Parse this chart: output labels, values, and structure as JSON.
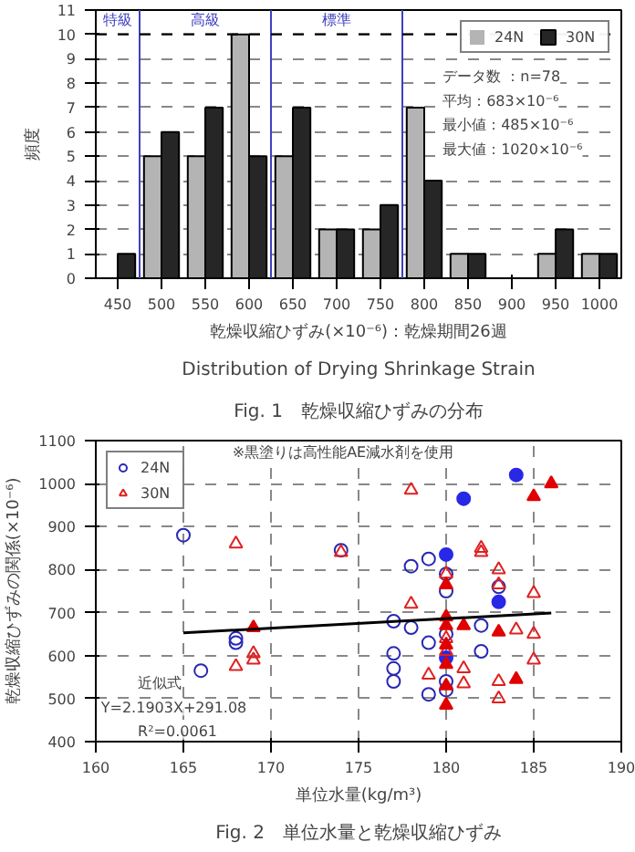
{
  "chart_data": [
    {
      "type": "bar",
      "title": "Fig. 1　乾燥収縮ひずみの分布",
      "subtitle": "Distribution of Drying Shrinkage Strain",
      "xlabel": "乾燥収縮ひずみ(×10⁻⁶)：乾燥期間26週",
      "ylabel": "頻度",
      "x": [
        450,
        500,
        550,
        600,
        650,
        700,
        750,
        800,
        850,
        900,
        950,
        1000
      ],
      "series": [
        {
          "name": "24N",
          "color": "#b4b4b4",
          "values": [
            0,
            5,
            5,
            10,
            5,
            2,
            2,
            7,
            1,
            0,
            1,
            1
          ]
        },
        {
          "name": "30N",
          "color": "#262626",
          "values": [
            1,
            6,
            7,
            5,
            7,
            2,
            3,
            4,
            1,
            0,
            2,
            1
          ]
        }
      ],
      "xlim": [
        425,
        1025
      ],
      "xticks": [
        450,
        500,
        550,
        600,
        650,
        700,
        750,
        800,
        850,
        900,
        950,
        1000
      ],
      "ylim": [
        0,
        11
      ],
      "yticks": [
        0,
        1,
        2,
        3,
        4,
        5,
        6,
        7,
        8,
        9,
        10,
        11
      ],
      "ref_lines": [
        {
          "axis": "x",
          "value": 475,
          "label": "特級",
          "color": "#4040c0"
        },
        {
          "axis": "x",
          "value": 625,
          "label": "高級",
          "color": "#4040c0"
        },
        {
          "axis": "x",
          "value": 775,
          "label": "標準",
          "color": "#4040c0"
        },
        {
          "axis": "y",
          "value": 10,
          "color": "#000000",
          "line_style": "dashed"
        }
      ],
      "annotations": [
        "データ数 ：n=78",
        "平均：683×10⁻⁶",
        "最小値：485×10⁻⁶",
        "最大値：1020×10⁻⁶"
      ],
      "grid": "y",
      "legend": "top right"
    },
    {
      "type": "scatter",
      "title": "Fig. 2　単位水量と乾燥収縮ひずみ",
      "xlabel": "単位水量(kg/m³)",
      "ylabel": "乾燥収縮ひずみの関係(×10⁻⁶)",
      "series": [
        {
          "name": "24N",
          "color": "#2828b4",
          "marker": "circle",
          "x": [
            165,
            166,
            168,
            168,
            174,
            177,
            177,
            177,
            177,
            178,
            178,
            179,
            179,
            179,
            180,
            180,
            180,
            180,
            180,
            182,
            182,
            183
          ],
          "values": [
            880,
            565,
            640,
            630,
            845,
            680,
            605,
            570,
            540,
            808,
            665,
            825,
            630,
            510,
            790,
            750,
            650,
            540,
            520,
            670,
            610,
            760
          ]
        },
        {
          "color": "#2828e6",
          "marker": "circle",
          "x": [
            180,
            180,
            181,
            183,
            184
          ],
          "values": [
            835,
            595,
            965,
            725,
            1020
          ]
        },
        {
          "name": "30N",
          "color": "#e02020",
          "marker": "triangle",
          "x": [
            168,
            168,
            169,
            169,
            174,
            178,
            178,
            179,
            180,
            180,
            180,
            181,
            181,
            182,
            182,
            183,
            183,
            183,
            183,
            184,
            185,
            185,
            185
          ],
          "values": [
            860,
            575,
            605,
            590,
            840,
            985,
            720,
            555,
            790,
            640,
            610,
            570,
            535,
            850,
            840,
            800,
            765,
            540,
            500,
            660,
            745,
            650,
            590
          ]
        },
        {
          "color": "#e00000",
          "marker": "triangle",
          "x": [
            169,
            180,
            180,
            180,
            180,
            180,
            180,
            180,
            181,
            183,
            184,
            185,
            186
          ],
          "values": [
            665,
            765,
            690,
            670,
            625,
            580,
            530,
            485,
            670,
            655,
            545,
            970,
            1000
          ]
        },
        {
          "type": "line",
          "color": "#000000",
          "x": [
            165,
            186
          ],
          "values": [
            653,
            699
          ]
        }
      ],
      "xlim": [
        160,
        190
      ],
      "xticks": [
        160,
        165,
        170,
        175,
        180,
        185,
        190
      ],
      "ylim": [
        400,
        1100
      ],
      "yticks": [
        400,
        500,
        600,
        700,
        800,
        900,
        1000,
        1100
      ],
      "annotations": [
        "※黒塗りは高性能AE減水剤を使用",
        "近似式",
        "Y=2.1903X+291.08",
        "R²=0.0061"
      ],
      "grid": true,
      "legend": "top left"
    }
  ]
}
